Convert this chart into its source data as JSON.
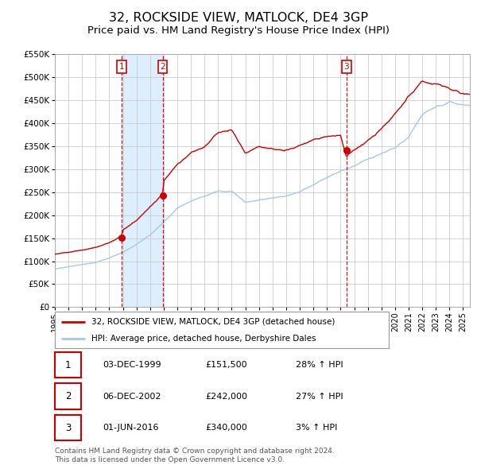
{
  "title": "32, ROCKSIDE VIEW, MATLOCK, DE4 3GP",
  "subtitle": "Price paid vs. HM Land Registry's House Price Index (HPI)",
  "title_fontsize": 11.5,
  "subtitle_fontsize": 9.5,
  "background_color": "#ffffff",
  "plot_bg_color": "#ffffff",
  "grid_color": "#cccccc",
  "hpi_color": "#a8c8e8",
  "price_color": "#cc0000",
  "ylim": [
    0,
    550000
  ],
  "yticks": [
    0,
    50000,
    100000,
    150000,
    200000,
    250000,
    300000,
    350000,
    400000,
    450000,
    500000,
    550000
  ],
  "ytick_labels": [
    "£0",
    "£50K",
    "£100K",
    "£150K",
    "£200K",
    "£250K",
    "£300K",
    "£350K",
    "£400K",
    "£450K",
    "£500K",
    "£550K"
  ],
  "xlim_start": 1995.0,
  "xlim_end": 2025.5,
  "xticks": [
    1995,
    1996,
    1997,
    1998,
    1999,
    2000,
    2001,
    2002,
    2003,
    2004,
    2005,
    2006,
    2007,
    2008,
    2009,
    2010,
    2011,
    2012,
    2013,
    2014,
    2015,
    2016,
    2017,
    2018,
    2019,
    2020,
    2021,
    2022,
    2023,
    2024,
    2025
  ],
  "sale_dates": [
    1999.92,
    2002.92,
    2016.42
  ],
  "sale_prices": [
    151500,
    242000,
    340000
  ],
  "vline_color": "#cc0000",
  "marker_color": "#cc0000",
  "sale_labels": [
    "1",
    "2",
    "3"
  ],
  "shade_color": "#ddeeff",
  "legend_line1": "32, ROCKSIDE VIEW, MATLOCK, DE4 3GP (detached house)",
  "legend_line2": "HPI: Average price, detached house, Derbyshire Dales",
  "table_data": [
    [
      "1",
      "03-DEC-1999",
      "£151,500",
      "28% ↑ HPI"
    ],
    [
      "2",
      "06-DEC-2002",
      "£242,000",
      "27% ↑ HPI"
    ],
    [
      "3",
      "01-JUN-2016",
      "£340,000",
      "3% ↑ HPI"
    ]
  ],
  "footer": "Contains HM Land Registry data © Crown copyright and database right 2024.\nThis data is licensed under the Open Government Licence v3.0."
}
